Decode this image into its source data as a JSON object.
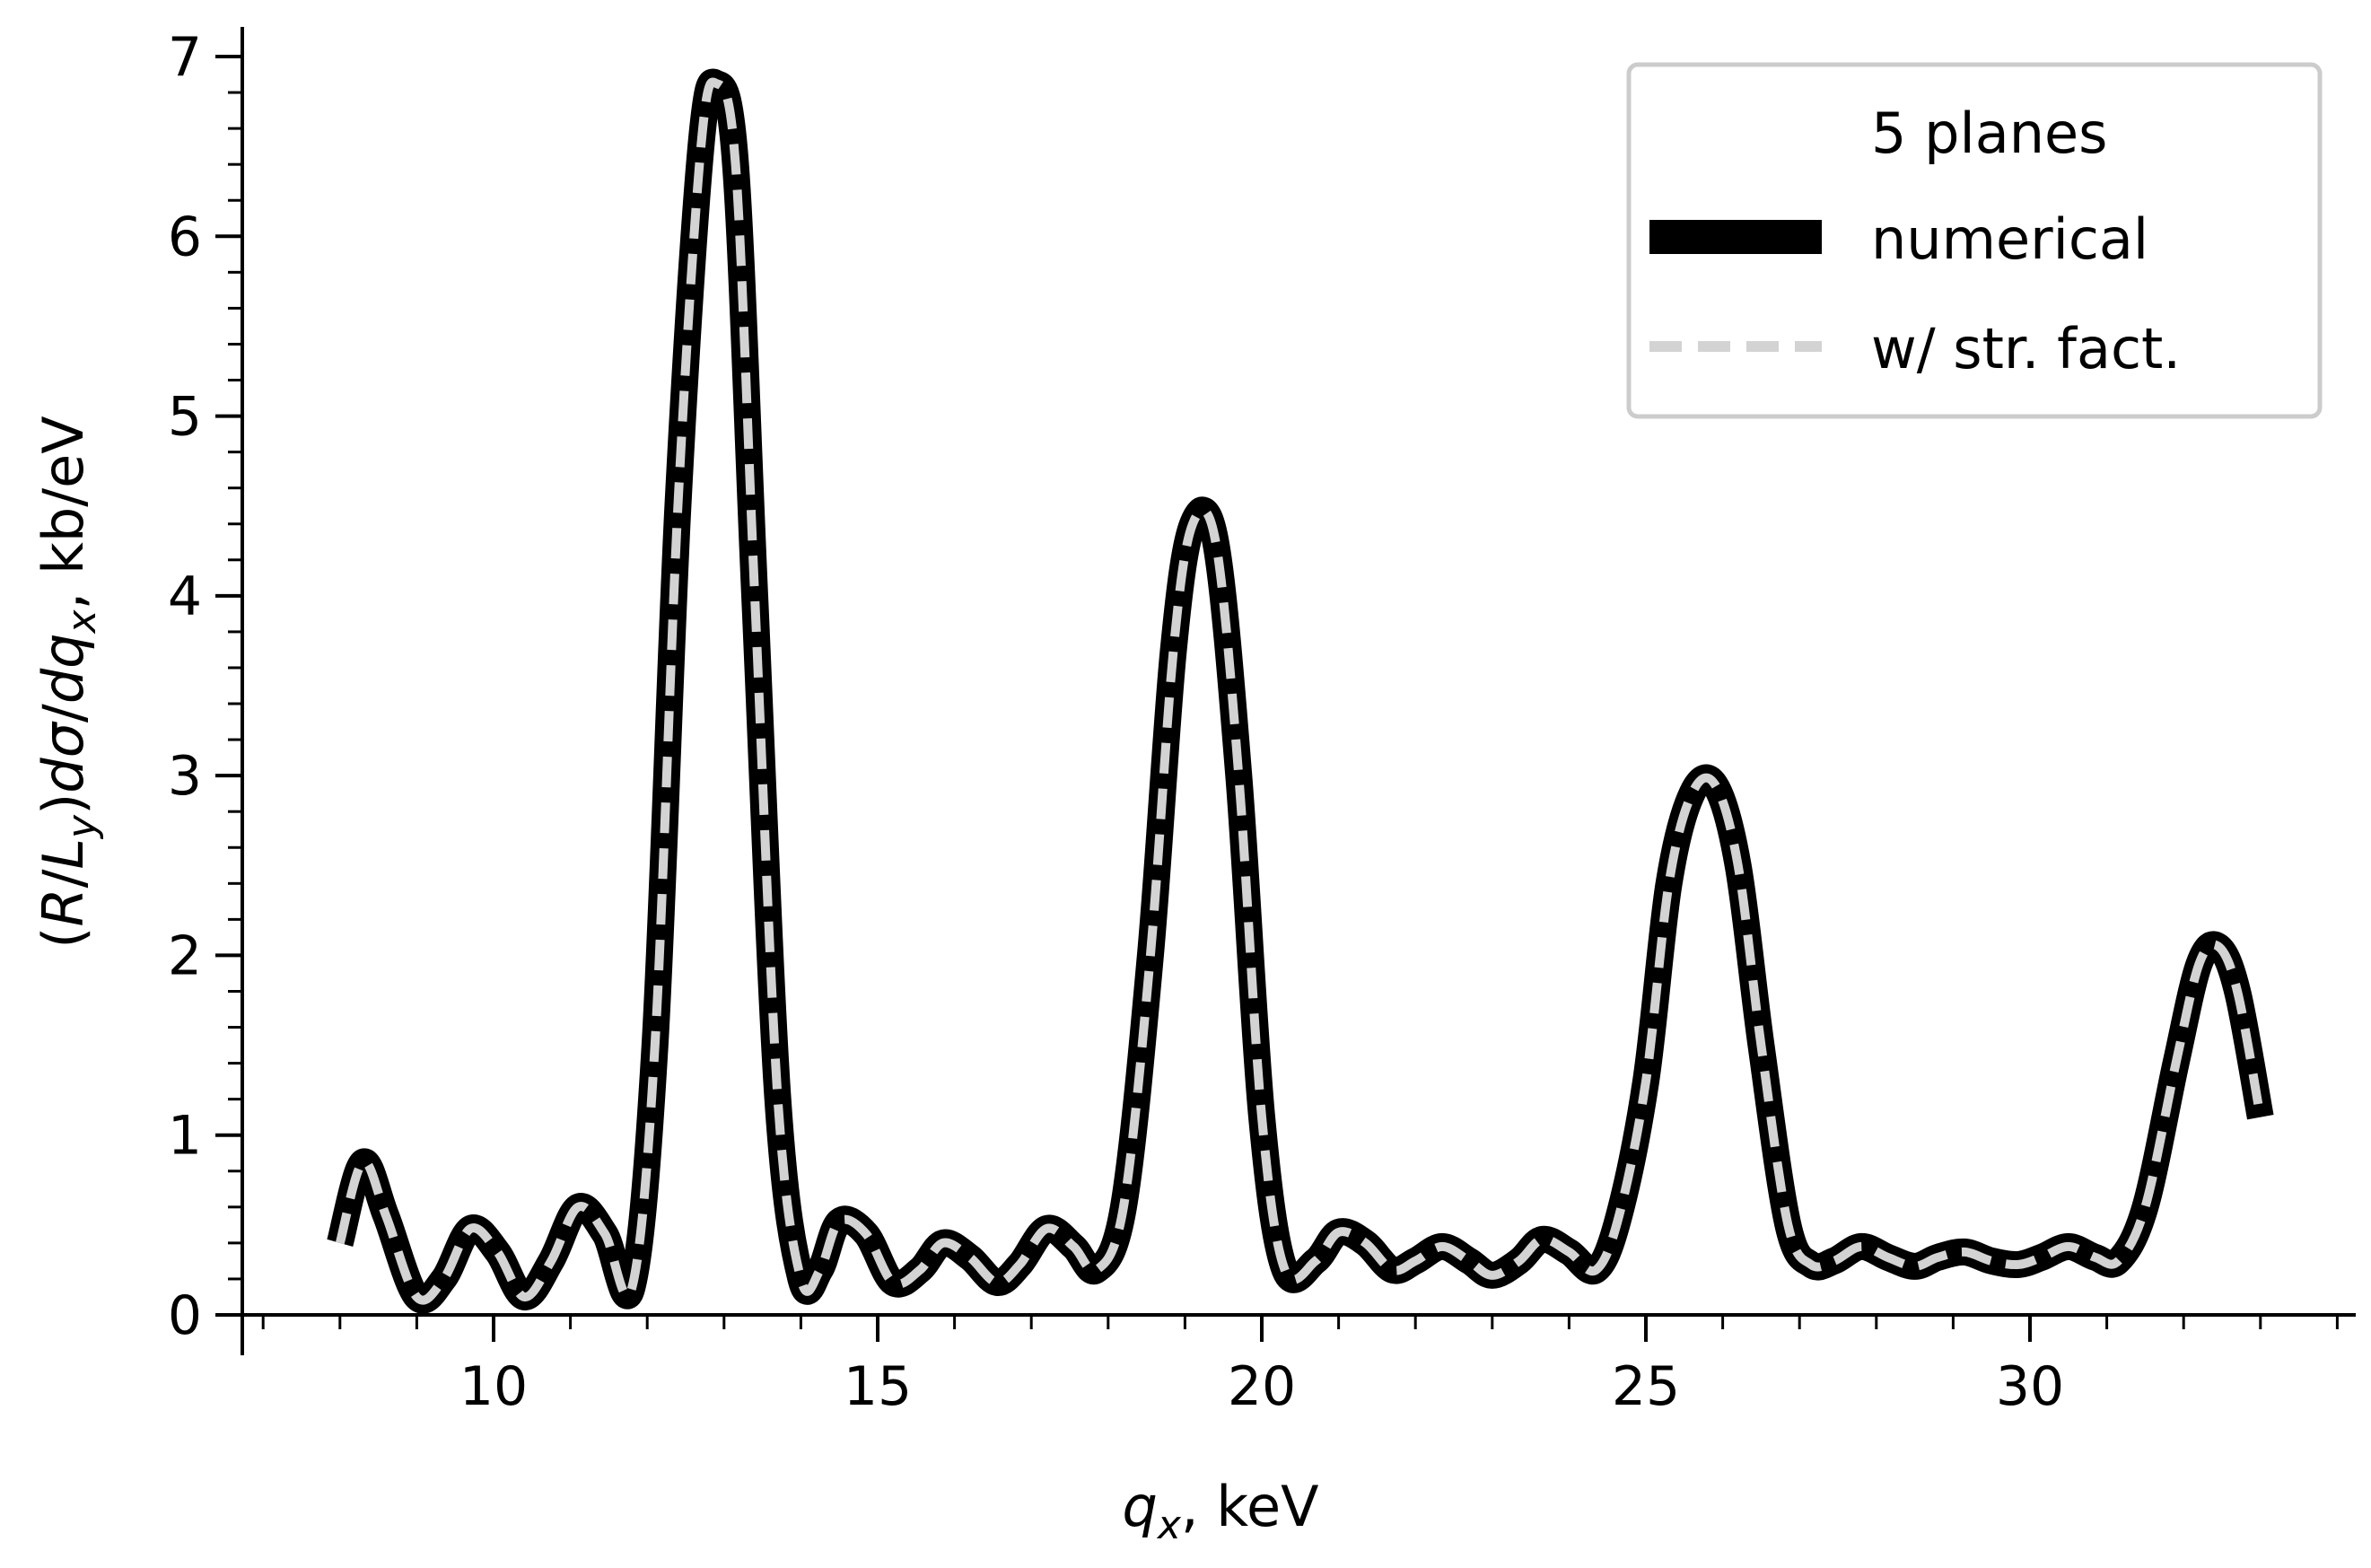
{
  "chart_data": {
    "type": "line",
    "title": "",
    "xlabel": {
      "main": "q",
      "sub": "x",
      "rest": ", keV"
    },
    "ylabel": {
      "p1": "(",
      "R": "R",
      "p2": "/",
      "L": "L",
      "y": "y",
      "p3": ")",
      "d1": "d",
      "sigma": "σ",
      "p4": "/",
      "d2": "d",
      "q": "q",
      "x": "x",
      "rest": ", kb/eV"
    },
    "xlim": [
      6.9,
      34.3
    ],
    "ylim": [
      0,
      7.2
    ],
    "x_ticks": [
      10,
      15,
      20,
      25,
      30
    ],
    "x_tick_labels": [
      "10",
      "15",
      "20",
      "25",
      "30"
    ],
    "y_ticks": [
      0,
      1,
      2,
      3,
      4,
      5,
      6,
      7
    ],
    "y_tick_labels": [
      "0",
      "1",
      "2",
      "3",
      "4",
      "5",
      "6",
      "7"
    ],
    "legend": {
      "title": "5 planes",
      "position": "top-right",
      "entries": [
        "numerical",
        "w/ str. fact."
      ]
    },
    "series": [
      {
        "name": "numerical",
        "color": "#000000",
        "style": "solid",
        "x": [
          8.0,
          8.3,
          8.6,
          9.0,
          9.35,
          9.7,
          10.05,
          10.4,
          10.75,
          11.1,
          11.45,
          11.8,
          12.1,
          12.4,
          12.7,
          12.9,
          13.15,
          13.4,
          13.7,
          14.0,
          14.25,
          14.5,
          14.85,
          15.2,
          15.55,
          15.85,
          16.2,
          16.55,
          16.85,
          17.2,
          17.55,
          17.85,
          18.2,
          18.55,
          18.85,
          19.1,
          19.4,
          19.7,
          20.0,
          20.3,
          20.7,
          21.0,
          21.35,
          21.7,
          22.0,
          22.35,
          22.7,
          23.0,
          23.35,
          23.65,
          24.0,
          24.35,
          24.65,
          25.0,
          25.3,
          25.6,
          25.9,
          26.2,
          26.5,
          26.85,
          27.15,
          27.45,
          27.8,
          28.15,
          28.5,
          28.8,
          29.15,
          29.5,
          29.85,
          30.15,
          30.5,
          30.85,
          31.15,
          31.5,
          31.9,
          32.2,
          32.45,
          32.7,
          33.0
        ],
        "y": [
          0.4,
          0.85,
          0.55,
          0.1,
          0.2,
          0.48,
          0.35,
          0.1,
          0.3,
          0.6,
          0.45,
          0.15,
          1.5,
          4.5,
          6.5,
          6.85,
          6.4,
          4.0,
          1.2,
          0.2,
          0.25,
          0.52,
          0.45,
          0.18,
          0.25,
          0.4,
          0.32,
          0.18,
          0.28,
          0.48,
          0.38,
          0.25,
          0.6,
          2.0,
          3.7,
          4.4,
          4.3,
          3.0,
          1.1,
          0.25,
          0.3,
          0.46,
          0.4,
          0.25,
          0.3,
          0.38,
          0.3,
          0.22,
          0.3,
          0.42,
          0.35,
          0.25,
          0.55,
          1.3,
          2.4,
          2.9,
          2.95,
          2.5,
          1.5,
          0.5,
          0.28,
          0.3,
          0.38,
          0.32,
          0.27,
          0.32,
          0.35,
          0.3,
          0.28,
          0.32,
          0.38,
          0.32,
          0.3,
          0.6,
          1.4,
          1.95,
          2.05,
          1.8,
          1.1
        ]
      },
      {
        "name": "w/ str. fact.",
        "color": "#d3d3d3",
        "style": "dashed",
        "same_as": "numerical"
      }
    ]
  }
}
